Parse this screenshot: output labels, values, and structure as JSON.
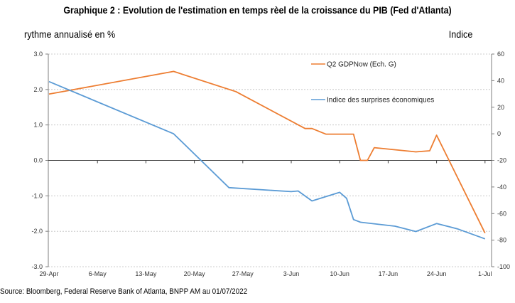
{
  "header": {
    "title": "Graphique 2 :  Evolution de l'estimation en temps rèel de la croissance du PIB (Fed d'Atlanta)",
    "left_axis_caption": "rythme annualisé en %",
    "right_axis_caption": "Indice"
  },
  "footer": {
    "source": "Source: Bloomberg, Federal Reserve Bank of Atlanta, BNPP AM au 01/07/2022"
  },
  "chart_data": {
    "type": "line",
    "title": "Graphique 2 :  Evolution de l'estimation en temps rèel de la croissance du PIB (Fed d'Atlanta)",
    "xlabel": "",
    "ylabel": "rythme annualisé en %",
    "y2label": "Indice",
    "x_tick_labels": [
      "29-Apr",
      "6-May",
      "13-May",
      "20-May",
      "27-May",
      "3-Jun",
      "10-Jun",
      "17-Jun",
      "24-Jun",
      "1-Jul"
    ],
    "x_range_days": [
      0,
      63
    ],
    "ylim": [
      -3.0,
      3.0
    ],
    "yticks": [
      "3.0",
      "2.0",
      "1.0",
      "0.0",
      "-1.0",
      "-2.0",
      "-3.0"
    ],
    "y2lim": [
      -100,
      60
    ],
    "y2ticks": [
      "60",
      "40",
      "20",
      "0",
      "-20",
      "-40",
      "-60",
      "-80",
      "-100"
    ],
    "grid": "horizontal dashed",
    "legend_position": "top-right",
    "series": [
      {
        "name": "Q2 GDPNow (Ech. G)",
        "axis": "left",
        "color": "#ED7D31",
        "x_days": [
          0,
          18,
          27,
          37,
          38,
          40,
          44,
          45,
          46,
          47,
          53,
          55,
          56,
          63
        ],
        "values": [
          1.87,
          2.51,
          1.94,
          0.9,
          0.9,
          0.74,
          0.74,
          0.0,
          0.0,
          0.36,
          0.24,
          0.27,
          0.71,
          -2.05
        ]
      },
      {
        "name": "Indice des surprises économiques",
        "axis": "right",
        "color": "#5B9BD5",
        "x_days": [
          0,
          18,
          26,
          35,
          36,
          38,
          42,
          43,
          44,
          45,
          50,
          53,
          56,
          59,
          63
        ],
        "values": [
          39.3,
          0.0,
          -40.5,
          -43.5,
          -43.0,
          -50.5,
          -44.0,
          -48.5,
          -64.5,
          -66.5,
          -69.5,
          -73.5,
          -67.5,
          -71.5,
          -79.0
        ]
      }
    ]
  }
}
